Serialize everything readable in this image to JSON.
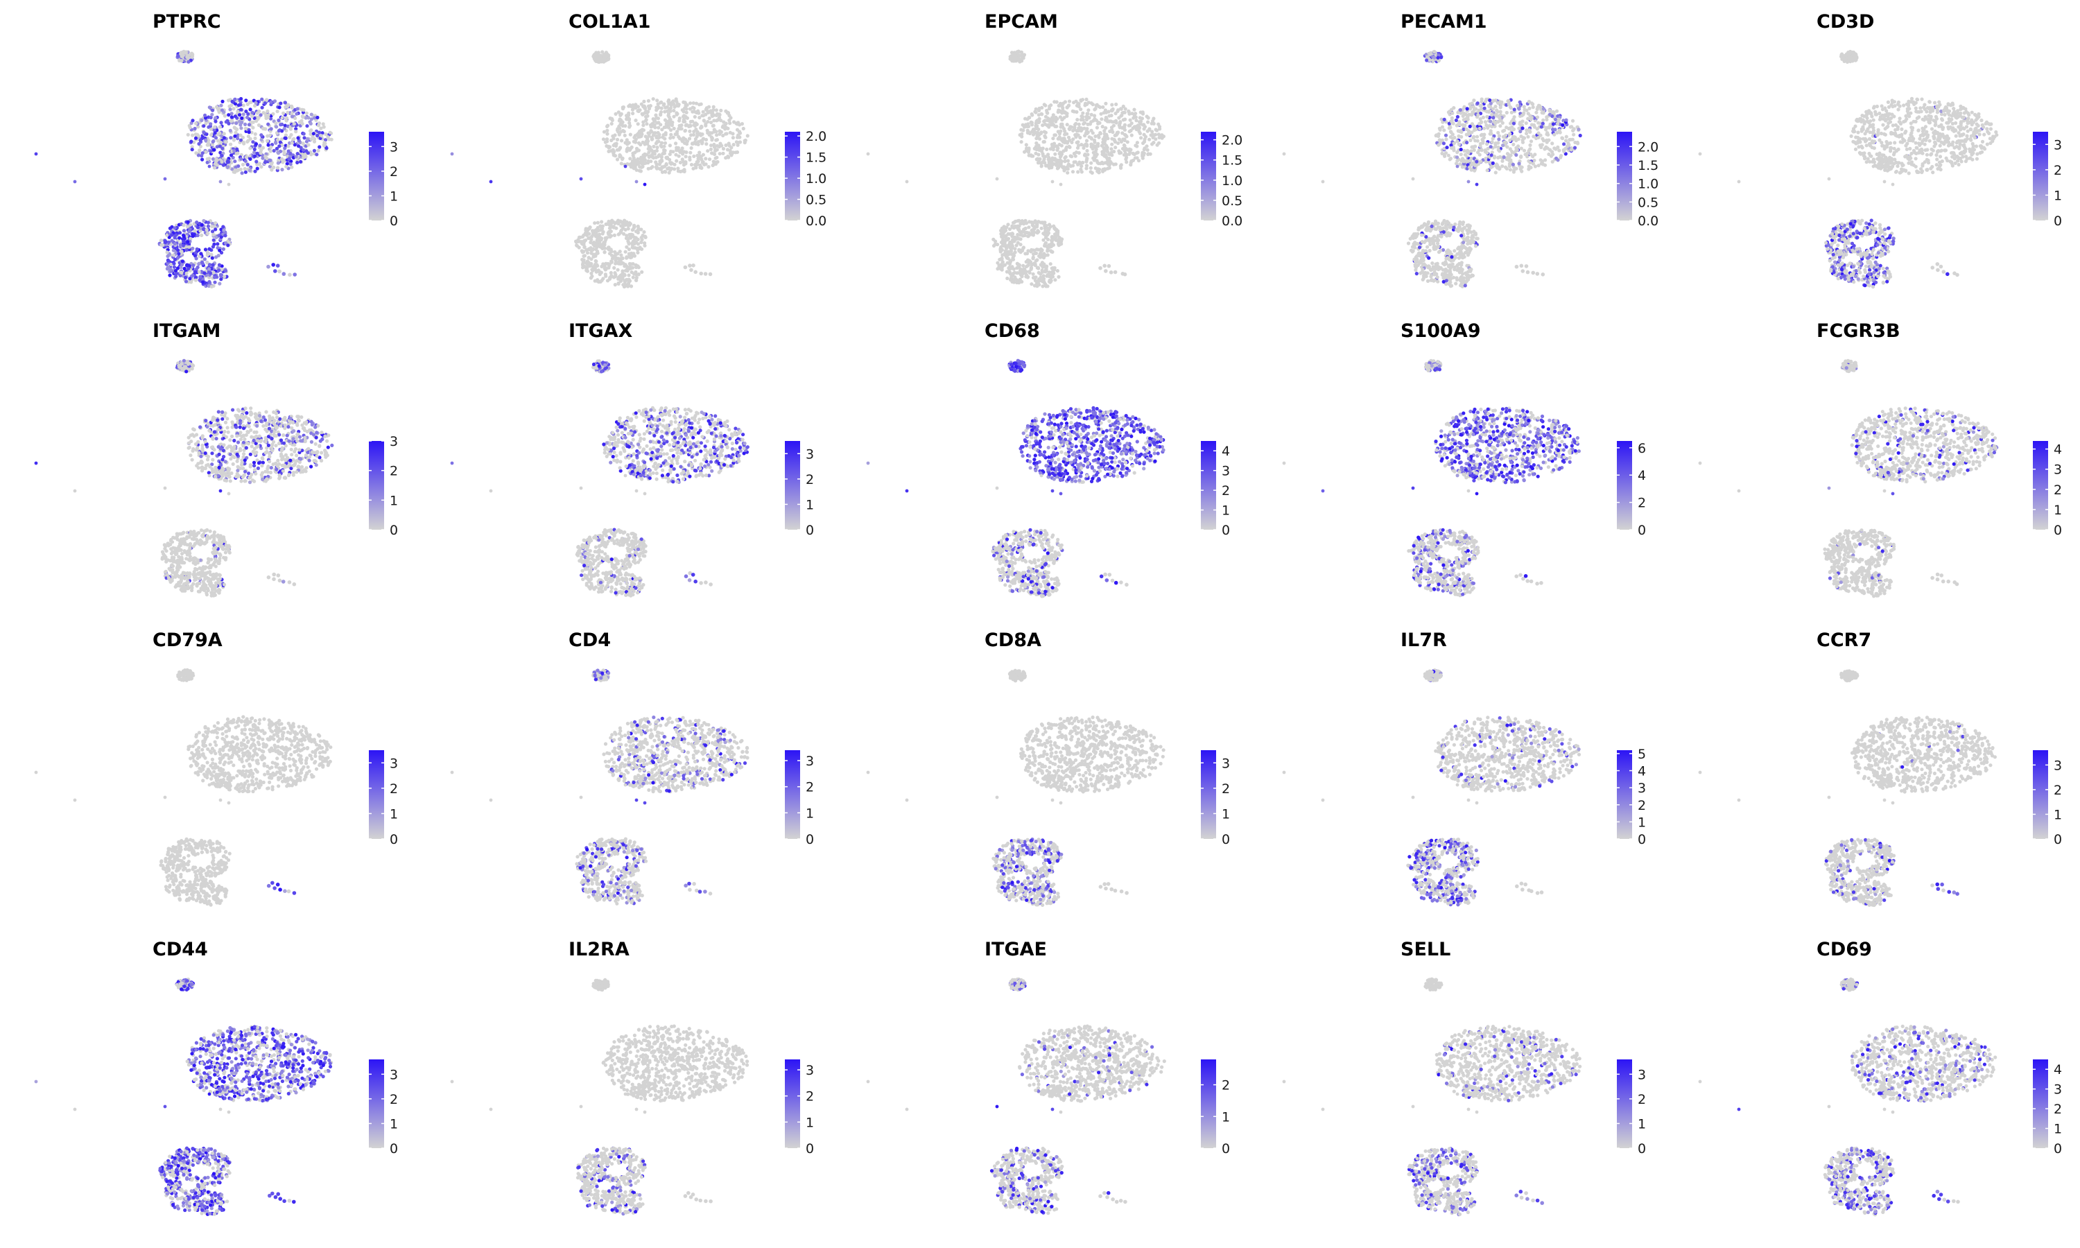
{
  "colors": {
    "low": "#d3d3d3",
    "high": "#2c14f5",
    "background": "#ffffff",
    "tick": "#333333"
  },
  "chart_data": {
    "type": "scatter",
    "layout": "4x5 feature-plot grid (UMAP embeddings colored by expression)",
    "panels": [
      {
        "title": "PTPRC",
        "scale_max": 3.6,
        "ticks": [
          "0",
          "1",
          "2",
          "3"
        ],
        "tick_values": [
          0,
          1,
          2,
          3
        ],
        "pattern": {
          "main": 0.55,
          "top": 0.4,
          "bottom": 0.75,
          "strip": 0.6,
          "dots": 0.6
        }
      },
      {
        "title": "COL1A1",
        "scale_max": 2.1,
        "ticks": [
          "0.0",
          "0.5",
          "1.0",
          "1.5",
          "2.0"
        ],
        "tick_values": [
          0,
          0.5,
          1,
          1.5,
          2
        ],
        "pattern": {
          "main": 0.0,
          "top": 0.0,
          "bottom": 0.0,
          "strip": 0.0,
          "dots": 0.9
        }
      },
      {
        "title": "EPCAM",
        "scale_max": 2.2,
        "ticks": [
          "0.0",
          "0.5",
          "1.0",
          "1.5",
          "2.0"
        ],
        "tick_values": [
          0,
          0.5,
          1,
          1.5,
          2
        ],
        "pattern": {
          "main": 0.0,
          "top": 0.0,
          "bottom": 0.0,
          "strip": 0.0,
          "dots": 0.0
        }
      },
      {
        "title": "PECAM1",
        "scale_max": 2.4,
        "ticks": [
          "0.0",
          "0.5",
          "1.0",
          "1.5",
          "2.0"
        ],
        "tick_values": [
          0,
          0.5,
          1,
          1.5,
          2
        ],
        "pattern": {
          "main": 0.2,
          "top": 0.5,
          "bottom": 0.08,
          "strip": 0.1,
          "dots": 0.3
        }
      },
      {
        "title": "CD3D",
        "scale_max": 3.5,
        "ticks": [
          "0",
          "1",
          "2",
          "3"
        ],
        "tick_values": [
          0,
          1,
          2,
          3
        ],
        "pattern": {
          "main": 0.01,
          "top": 0.0,
          "bottom": 0.5,
          "strip": 0.1,
          "dots": 0.1
        }
      },
      {
        "title": "ITGAM",
        "scale_max": 3.0,
        "ticks": [
          "0",
          "1",
          "2",
          "3"
        ],
        "tick_values": [
          0,
          1,
          2,
          3
        ],
        "pattern": {
          "main": 0.3,
          "top": 0.3,
          "bottom": 0.05,
          "strip": 0.2,
          "dots": 0.2
        }
      },
      {
        "title": "ITGAX",
        "scale_max": 3.5,
        "ticks": [
          "0",
          "1",
          "2",
          "3"
        ],
        "tick_values": [
          0,
          1,
          2,
          3
        ],
        "pattern": {
          "main": 0.4,
          "top": 0.5,
          "bottom": 0.1,
          "strip": 0.3,
          "dots": 0.3
        }
      },
      {
        "title": "CD68",
        "scale_max": 4.5,
        "ticks": [
          "0",
          "1",
          "2",
          "3",
          "4"
        ],
        "tick_values": [
          0,
          1,
          2,
          3,
          4
        ],
        "pattern": {
          "main": 0.85,
          "top": 0.9,
          "bottom": 0.25,
          "strip": 0.5,
          "dots": 0.8
        }
      },
      {
        "title": "S100A9",
        "scale_max": 6.5,
        "ticks": [
          "0",
          "2",
          "4",
          "6"
        ],
        "tick_values": [
          0,
          2,
          4,
          6
        ],
        "pattern": {
          "main": 0.7,
          "top": 0.4,
          "bottom": 0.25,
          "strip": 0.2,
          "dots": 0.6
        }
      },
      {
        "title": "FCGR3B",
        "scale_max": 4.4,
        "ticks": [
          "0",
          "1",
          "2",
          "3",
          "4"
        ],
        "tick_values": [
          0,
          1,
          2,
          3,
          4
        ],
        "pattern": {
          "main": 0.12,
          "top": 0.2,
          "bottom": 0.05,
          "strip": 0.1,
          "dots": 0.1
        }
      },
      {
        "title": "CD79A",
        "scale_max": 3.5,
        "ticks": [
          "0",
          "1",
          "2",
          "3"
        ],
        "tick_values": [
          0,
          1,
          2,
          3
        ],
        "pattern": {
          "main": 0.0,
          "top": 0.0,
          "bottom": 0.0,
          "strip": 0.9,
          "dots": 0.0
        }
      },
      {
        "title": "CD4",
        "scale_max": 3.4,
        "ticks": [
          "0",
          "1",
          "2",
          "3"
        ],
        "tick_values": [
          0,
          1,
          2,
          3
        ],
        "pattern": {
          "main": 0.18,
          "top": 0.5,
          "bottom": 0.2,
          "strip": 0.1,
          "dots": 0.3
        }
      },
      {
        "title": "CD8A",
        "scale_max": 3.5,
        "ticks": [
          "0",
          "1",
          "2",
          "3"
        ],
        "tick_values": [
          0,
          1,
          2,
          3
        ],
        "pattern": {
          "main": 0.0,
          "top": 0.0,
          "bottom": 0.35,
          "strip": 0.05,
          "dots": 0.0
        }
      },
      {
        "title": "IL7R",
        "scale_max": 5.2,
        "ticks": [
          "0",
          "1",
          "2",
          "3",
          "4",
          "5"
        ],
        "tick_values": [
          0,
          1,
          2,
          3,
          4,
          5
        ],
        "pattern": {
          "main": 0.12,
          "top": 0.2,
          "bottom": 0.45,
          "strip": 0.1,
          "dots": 0.2
        }
      },
      {
        "title": "CCR7",
        "scale_max": 3.6,
        "ticks": [
          "0",
          "1",
          "2",
          "3"
        ],
        "tick_values": [
          0,
          1,
          2,
          3
        ],
        "pattern": {
          "main": 0.01,
          "top": 0.0,
          "bottom": 0.15,
          "strip": 0.7,
          "dots": 0.0
        }
      },
      {
        "title": "CD44",
        "scale_max": 3.6,
        "ticks": [
          "0",
          "1",
          "2",
          "3"
        ],
        "tick_values": [
          0,
          1,
          2,
          3
        ],
        "pattern": {
          "main": 0.65,
          "top": 0.6,
          "bottom": 0.65,
          "strip": 0.6,
          "dots": 0.6
        }
      },
      {
        "title": "IL2RA",
        "scale_max": 3.4,
        "ticks": [
          "0",
          "1",
          "2",
          "3"
        ],
        "tick_values": [
          0,
          1,
          2,
          3
        ],
        "pattern": {
          "main": 0.0,
          "top": 0.0,
          "bottom": 0.25,
          "strip": 0.2,
          "dots": 0.0
        }
      },
      {
        "title": "ITGAE",
        "scale_max": 2.8,
        "ticks": [
          "0",
          "1",
          "2"
        ],
        "tick_values": [
          0,
          1,
          2
        ],
        "pattern": {
          "main": 0.08,
          "top": 0.3,
          "bottom": 0.25,
          "strip": 0.1,
          "dots": 0.1
        }
      },
      {
        "title": "SELL",
        "scale_max": 3.6,
        "ticks": [
          "0",
          "1",
          "2",
          "3"
        ],
        "tick_values": [
          0,
          1,
          2,
          3
        ],
        "pattern": {
          "main": 0.12,
          "top": 0.0,
          "bottom": 0.3,
          "strip": 0.5,
          "dots": 0.1
        }
      },
      {
        "title": "CD69",
        "scale_max": 4.5,
        "ticks": [
          "0",
          "1",
          "2",
          "3",
          "4"
        ],
        "tick_values": [
          0,
          1,
          2,
          3,
          4
        ],
        "pattern": {
          "main": 0.2,
          "top": 0.2,
          "bottom": 0.35,
          "strip": 0.5,
          "dots": 0.2
        }
      }
    ]
  }
}
